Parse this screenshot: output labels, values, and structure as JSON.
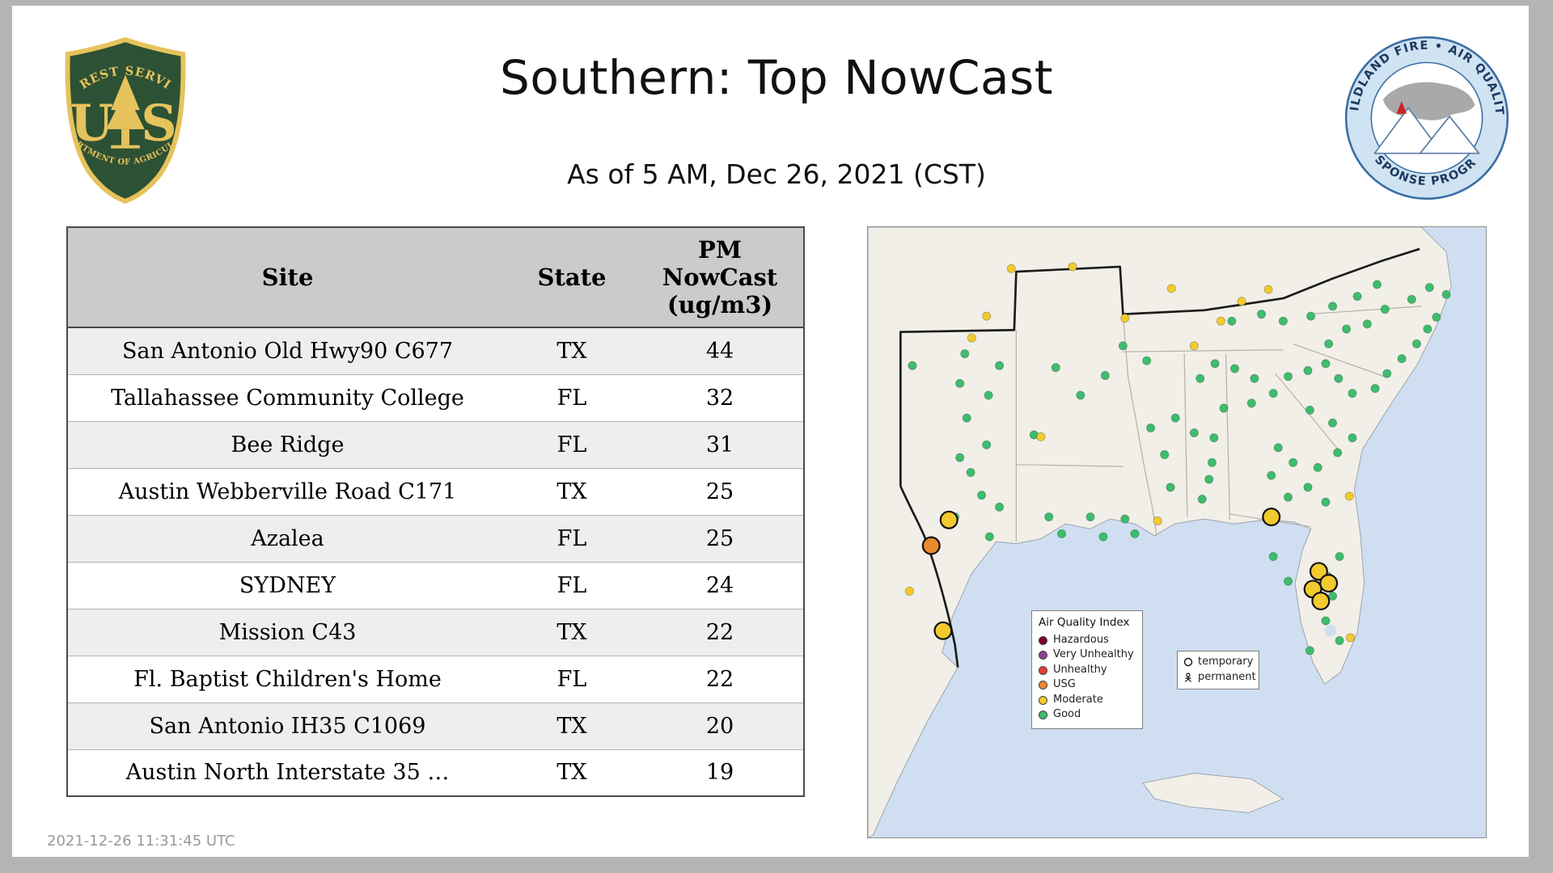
{
  "page": {
    "title": "Southern: Top NowCast",
    "subtitle": "As of  5 AM, Dec 26, 2021 (CST)",
    "timestamp": "2021-12-26 11:31:45 UTC"
  },
  "logos": {
    "forest_service": {
      "top_text": "FOREST SERVICE",
      "letter_u": "U",
      "letter_s": "S",
      "bottom_text": "DEPARTMENT OF AGRICULTURE",
      "shield_green": "#2d5134",
      "gold": "#e6c35c"
    },
    "wfaqrp": {
      "top_text": "WILDLAND FIRE • AIR QUALITY",
      "bottom_text": "RESPONSE PROGRAM",
      "ring_blue": "#cfe3f2",
      "text_navy": "#1d3a5f"
    }
  },
  "table": {
    "header": {
      "site": "Site",
      "state": "State",
      "pm": "PM\nNowCast\n(ug/m3)"
    },
    "rows": [
      {
        "site": "San Antonio Old Hwy90 C677",
        "state": "TX",
        "pm": "44"
      },
      {
        "site": "Tallahassee Community College",
        "state": "FL",
        "pm": "32"
      },
      {
        "site": "Bee Ridge",
        "state": "FL",
        "pm": "31"
      },
      {
        "site": "Austin Webberville Road C171",
        "state": "TX",
        "pm": "25"
      },
      {
        "site": "Azalea",
        "state": "FL",
        "pm": "25"
      },
      {
        "site": "SYDNEY",
        "state": "FL",
        "pm": "24"
      },
      {
        "site": "Mission C43",
        "state": "TX",
        "pm": "22"
      },
      {
        "site": "Fl. Baptist Children's Home",
        "state": "FL",
        "pm": "22"
      },
      {
        "site": "San Antonio IH35 C1069",
        "state": "TX",
        "pm": "20"
      },
      {
        "site": "Austin North Interstate 35 …",
        "state": "TX",
        "pm": "19"
      }
    ]
  },
  "map": {
    "colors": {
      "water": "#cfdff1",
      "land": "#f1efe8",
      "state_border": "#b7b1a6",
      "region_border": "#1c1c1c"
    },
    "aqi_colors": {
      "g": "#3dbd6d",
      "m": "#f2ca2d",
      "o": "#e98a2b"
    },
    "legend": {
      "title": "Air Quality Index",
      "items": [
        {
          "label": "Hazardous",
          "color": "#7e0023"
        },
        {
          "label": "Very Unhealthy",
          "color": "#8f3f97"
        },
        {
          "label": "Unhealthy",
          "color": "#e53f35"
        },
        {
          "label": "USG",
          "color": "#ef8533"
        },
        {
          "label": "Moderate",
          "color": "#f2ca2d"
        },
        {
          "label": "Good",
          "color": "#3dbd6d"
        }
      ]
    },
    "marker_legend": {
      "temporary": "temporary",
      "permanent": "permanent"
    },
    "monitors": [
      [
        45,
        140,
        "g",
        "p"
      ],
      [
        98,
        128,
        "g",
        "p"
      ],
      [
        133,
        140,
        "g",
        "p"
      ],
      [
        93,
        158,
        "g",
        "p"
      ],
      [
        122,
        170,
        "g",
        "p"
      ],
      [
        100,
        193,
        "g",
        "p"
      ],
      [
        120,
        220,
        "g",
        "p"
      ],
      [
        168,
        210,
        "g",
        "p"
      ],
      [
        93,
        233,
        "g",
        "p"
      ],
      [
        104,
        248,
        "g",
        "p"
      ],
      [
        115,
        271,
        "g",
        "p"
      ],
      [
        133,
        283,
        "g",
        "p"
      ],
      [
        88,
        293,
        "g",
        "p"
      ],
      [
        123,
        313,
        "g",
        "p"
      ],
      [
        183,
        293,
        "g",
        "p"
      ],
      [
        196,
        310,
        "g",
        "p"
      ],
      [
        225,
        293,
        "g",
        "p"
      ],
      [
        238,
        313,
        "g",
        "p"
      ],
      [
        260,
        295,
        "g",
        "p"
      ],
      [
        270,
        310,
        "g",
        "p"
      ],
      [
        215,
        170,
        "g",
        "p"
      ],
      [
        240,
        150,
        "g",
        "p"
      ],
      [
        258,
        120,
        "g",
        "p"
      ],
      [
        190,
        142,
        "g",
        "p"
      ],
      [
        282,
        135,
        "g",
        "p"
      ],
      [
        286,
        203,
        "g",
        "p"
      ],
      [
        300,
        230,
        "g",
        "p"
      ],
      [
        306,
        263,
        "g",
        "p"
      ],
      [
        311,
        193,
        "g",
        "p"
      ],
      [
        330,
        208,
        "g",
        "p"
      ],
      [
        350,
        213,
        "g",
        "p"
      ],
      [
        348,
        238,
        "g",
        "p"
      ],
      [
        336,
        153,
        "g",
        "p"
      ],
      [
        351,
        138,
        "g",
        "p"
      ],
      [
        360,
        183,
        "g",
        "p"
      ],
      [
        345,
        255,
        "g",
        "p"
      ],
      [
        338,
        275,
        "g",
        "p"
      ],
      [
        368,
        95,
        "g",
        "p"
      ],
      [
        398,
        88,
        "g",
        "p"
      ],
      [
        420,
        95,
        "g",
        "p"
      ],
      [
        448,
        90,
        "g",
        "p"
      ],
      [
        470,
        80,
        "g",
        "p"
      ],
      [
        371,
        143,
        "g",
        "p"
      ],
      [
        391,
        153,
        "g",
        "p"
      ],
      [
        388,
        178,
        "g",
        "p"
      ],
      [
        410,
        168,
        "g",
        "p"
      ],
      [
        425,
        151,
        "g",
        "p"
      ],
      [
        447,
        185,
        "g",
        "p"
      ],
      [
        430,
        238,
        "g",
        "p"
      ],
      [
        415,
        223,
        "g",
        "p"
      ],
      [
        408,
        251,
        "g",
        "p"
      ],
      [
        425,
        273,
        "g",
        "p"
      ],
      [
        445,
        263,
        "g",
        "p"
      ],
      [
        463,
        278,
        "g",
        "p"
      ],
      [
        445,
        145,
        "g",
        "p"
      ],
      [
        463,
        138,
        "g",
        "p"
      ],
      [
        476,
        153,
        "g",
        "p"
      ],
      [
        490,
        168,
        "g",
        "p"
      ],
      [
        513,
        163,
        "g",
        "p"
      ],
      [
        525,
        148,
        "g",
        "p"
      ],
      [
        540,
        133,
        "g",
        "p"
      ],
      [
        555,
        118,
        "g",
        "p"
      ],
      [
        566,
        103,
        "g",
        "p"
      ],
      [
        575,
        91,
        "g",
        "p"
      ],
      [
        585,
        68,
        "g",
        "p"
      ],
      [
        568,
        61,
        "g",
        "p"
      ],
      [
        550,
        73,
        "g",
        "p"
      ],
      [
        523,
        83,
        "g",
        "p"
      ],
      [
        505,
        98,
        "g",
        "p"
      ],
      [
        484,
        103,
        "g",
        "p"
      ],
      [
        466,
        118,
        "g",
        "p"
      ],
      [
        495,
        70,
        "g",
        "p"
      ],
      [
        515,
        58,
        "g",
        "p"
      ],
      [
        477,
        333,
        "g",
        "p"
      ],
      [
        465,
        353,
        "g",
        "p"
      ],
      [
        455,
        373,
        "g",
        "p"
      ],
      [
        463,
        398,
        "g",
        "p"
      ],
      [
        477,
        418,
        "g",
        "p"
      ],
      [
        447,
        428,
        "g",
        "p"
      ],
      [
        470,
        373,
        "g",
        "p"
      ],
      [
        425,
        358,
        "g",
        "p"
      ],
      [
        410,
        333,
        "g",
        "p"
      ],
      [
        455,
        243,
        "g",
        "p"
      ],
      [
        470,
        198,
        "g",
        "p"
      ],
      [
        490,
        213,
        "g",
        "p"
      ],
      [
        475,
        228,
        "g",
        "p"
      ],
      [
        145,
        42,
        "m",
        "p"
      ],
      [
        207,
        40,
        "m",
        "p"
      ],
      [
        260,
        92,
        "m",
        "p"
      ],
      [
        307,
        62,
        "m",
        "p"
      ],
      [
        405,
        63,
        "m",
        "p"
      ],
      [
        378,
        75,
        "m",
        "p"
      ],
      [
        357,
        95,
        "m",
        "p"
      ],
      [
        120,
        90,
        "m",
        "p"
      ],
      [
        175,
        212,
        "m",
        "p"
      ],
      [
        42,
        368,
        "m",
        "p"
      ],
      [
        293,
        297,
        "m",
        "p"
      ],
      [
        488,
        415,
        "m",
        "p"
      ],
      [
        330,
        120,
        "m",
        "p"
      ],
      [
        487,
        272,
        "m",
        "p"
      ],
      [
        105,
        112,
        "m",
        "p"
      ],
      [
        82,
        296,
        "m",
        "t"
      ],
      [
        64,
        322,
        "o",
        "t"
      ],
      [
        76,
        408,
        "m",
        "t"
      ],
      [
        408,
        293,
        "m",
        "t"
      ],
      [
        456,
        348,
        "m",
        "t"
      ],
      [
        466,
        360,
        "m",
        "t"
      ],
      [
        450,
        366,
        "m",
        "t"
      ],
      [
        458,
        378,
        "m",
        "t"
      ]
    ]
  }
}
